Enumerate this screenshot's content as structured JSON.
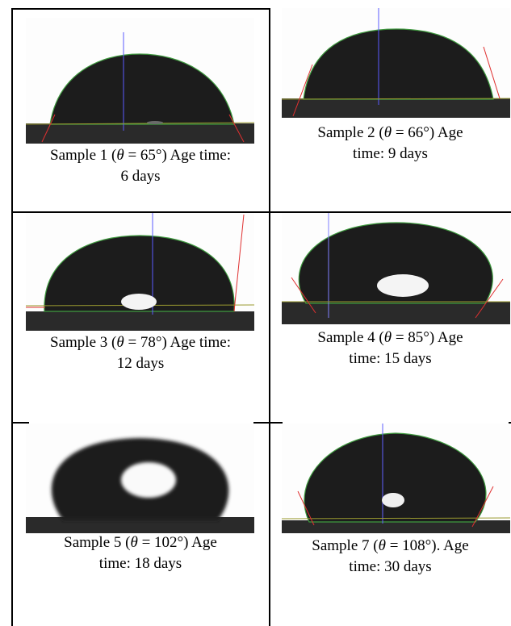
{
  "samples": [
    {
      "name": "Sample 1",
      "theta_symbol": "θ",
      "angle": "65°",
      "age_label": "Age time:",
      "age": "6 days",
      "line1": "Sample 1 (",
      "line1b": " = 65°) Age time:",
      "line2": "6 days"
    },
    {
      "name": "Sample 2",
      "theta_symbol": "θ",
      "angle": "66°",
      "line1": "Sample 2 (",
      "line1b": " = 66°) Age",
      "line2": "time: 9 days"
    },
    {
      "name": "Sample 3",
      "theta_symbol": "θ",
      "angle": "78°",
      "line1": "Sample 3 (",
      "line1b": " = 78°) Age time:",
      "line2": "12 days"
    },
    {
      "name": "Sample 4",
      "theta_symbol": "θ",
      "angle": "85°",
      "line1": "Sample 4 (",
      "line1b": " = 85°) Age",
      "line2": "time: 15 days"
    },
    {
      "name": "Sample 5",
      "theta_symbol": "θ",
      "angle": "102°",
      "line1": "Sample 5 (",
      "line1b": " = 102°) Age",
      "line2": "time: 18 days"
    },
    {
      "name": "Sample 7",
      "theta_symbol": "θ",
      "angle": "108°",
      "line1": "Sample 7 (",
      "line1b": " = 108°). Age",
      "line2": "time: 30 days"
    }
  ],
  "theta": "θ"
}
